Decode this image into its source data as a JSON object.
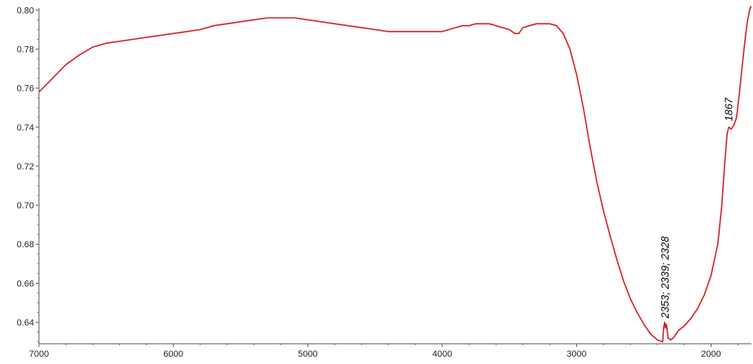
{
  "chart_data": {
    "type": "line",
    "title": "",
    "xlabel": "",
    "ylabel": "",
    "x_reversed": true,
    "xlim": [
      7000,
      1700
    ],
    "ylim": [
      0.629,
      0.801
    ],
    "grid": false,
    "legend": "none",
    "x_ticks": [
      7000,
      6000,
      5000,
      4000,
      3000,
      2000
    ],
    "x_tick_labels": [
      "7000",
      "6000",
      "5000",
      "4000",
      "3000",
      "2000"
    ],
    "y_ticks": [
      0.64,
      0.66,
      0.68,
      0.7,
      0.72,
      0.74,
      0.76,
      0.78,
      0.8
    ],
    "y_tick_labels": [
      "0.64",
      "0.66",
      "0.68",
      "0.70",
      "0.72",
      "0.74",
      "0.76",
      "0.78",
      "0.80"
    ],
    "series": [
      {
        "color": "#d42020",
        "x": [
          7000,
          6900,
          6800,
          6700,
          6600,
          6500,
          6400,
          6300,
          6200,
          6100,
          6000,
          5900,
          5800,
          5700,
          5600,
          5500,
          5400,
          5300,
          5200,
          5100,
          5000,
          4900,
          4800,
          4700,
          4600,
          4500,
          4400,
          4300,
          4200,
          4100,
          4000,
          3950,
          3900,
          3850,
          3800,
          3750,
          3700,
          3650,
          3600,
          3550,
          3500,
          3460,
          3430,
          3400,
          3350,
          3300,
          3250,
          3200,
          3150,
          3100,
          3050,
          3000,
          2950,
          2900,
          2850,
          2800,
          2750,
          2700,
          2650,
          2600,
          2550,
          2500,
          2450,
          2400,
          2360,
          2353,
          2345,
          2339,
          2333,
          2328,
          2320,
          2300,
          2280,
          2260,
          2240,
          2200,
          2150,
          2100,
          2050,
          2000,
          1950,
          1920,
          1900,
          1880,
          1867,
          1850,
          1830,
          1810,
          1790,
          1770,
          1750,
          1730,
          1710,
          1700
        ],
        "y": [
          0.758,
          0.765,
          0.772,
          0.777,
          0.781,
          0.783,
          0.784,
          0.785,
          0.786,
          0.787,
          0.788,
          0.789,
          0.79,
          0.792,
          0.793,
          0.794,
          0.795,
          0.796,
          0.796,
          0.796,
          0.795,
          0.794,
          0.793,
          0.792,
          0.791,
          0.79,
          0.789,
          0.789,
          0.789,
          0.789,
          0.789,
          0.79,
          0.791,
          0.792,
          0.792,
          0.793,
          0.793,
          0.793,
          0.792,
          0.791,
          0.79,
          0.788,
          0.788,
          0.791,
          0.792,
          0.793,
          0.793,
          0.793,
          0.792,
          0.788,
          0.78,
          0.767,
          0.75,
          0.73,
          0.712,
          0.697,
          0.684,
          0.672,
          0.661,
          0.652,
          0.645,
          0.639,
          0.634,
          0.631,
          0.63,
          0.637,
          0.64,
          0.637,
          0.639,
          0.637,
          0.632,
          0.631,
          0.632,
          0.634,
          0.636,
          0.638,
          0.642,
          0.647,
          0.654,
          0.664,
          0.68,
          0.7,
          0.72,
          0.737,
          0.74,
          0.739,
          0.741,
          0.745,
          0.757,
          0.77,
          0.783,
          0.794,
          0.801,
          0.802
        ]
      }
    ],
    "annotations": [
      {
        "text": "2353; 2339; 2328",
        "x": 2339,
        "y": 0.642,
        "rotation": -90
      },
      {
        "text": "1867",
        "x": 1867,
        "y": 0.743,
        "rotation": -90
      }
    ]
  }
}
